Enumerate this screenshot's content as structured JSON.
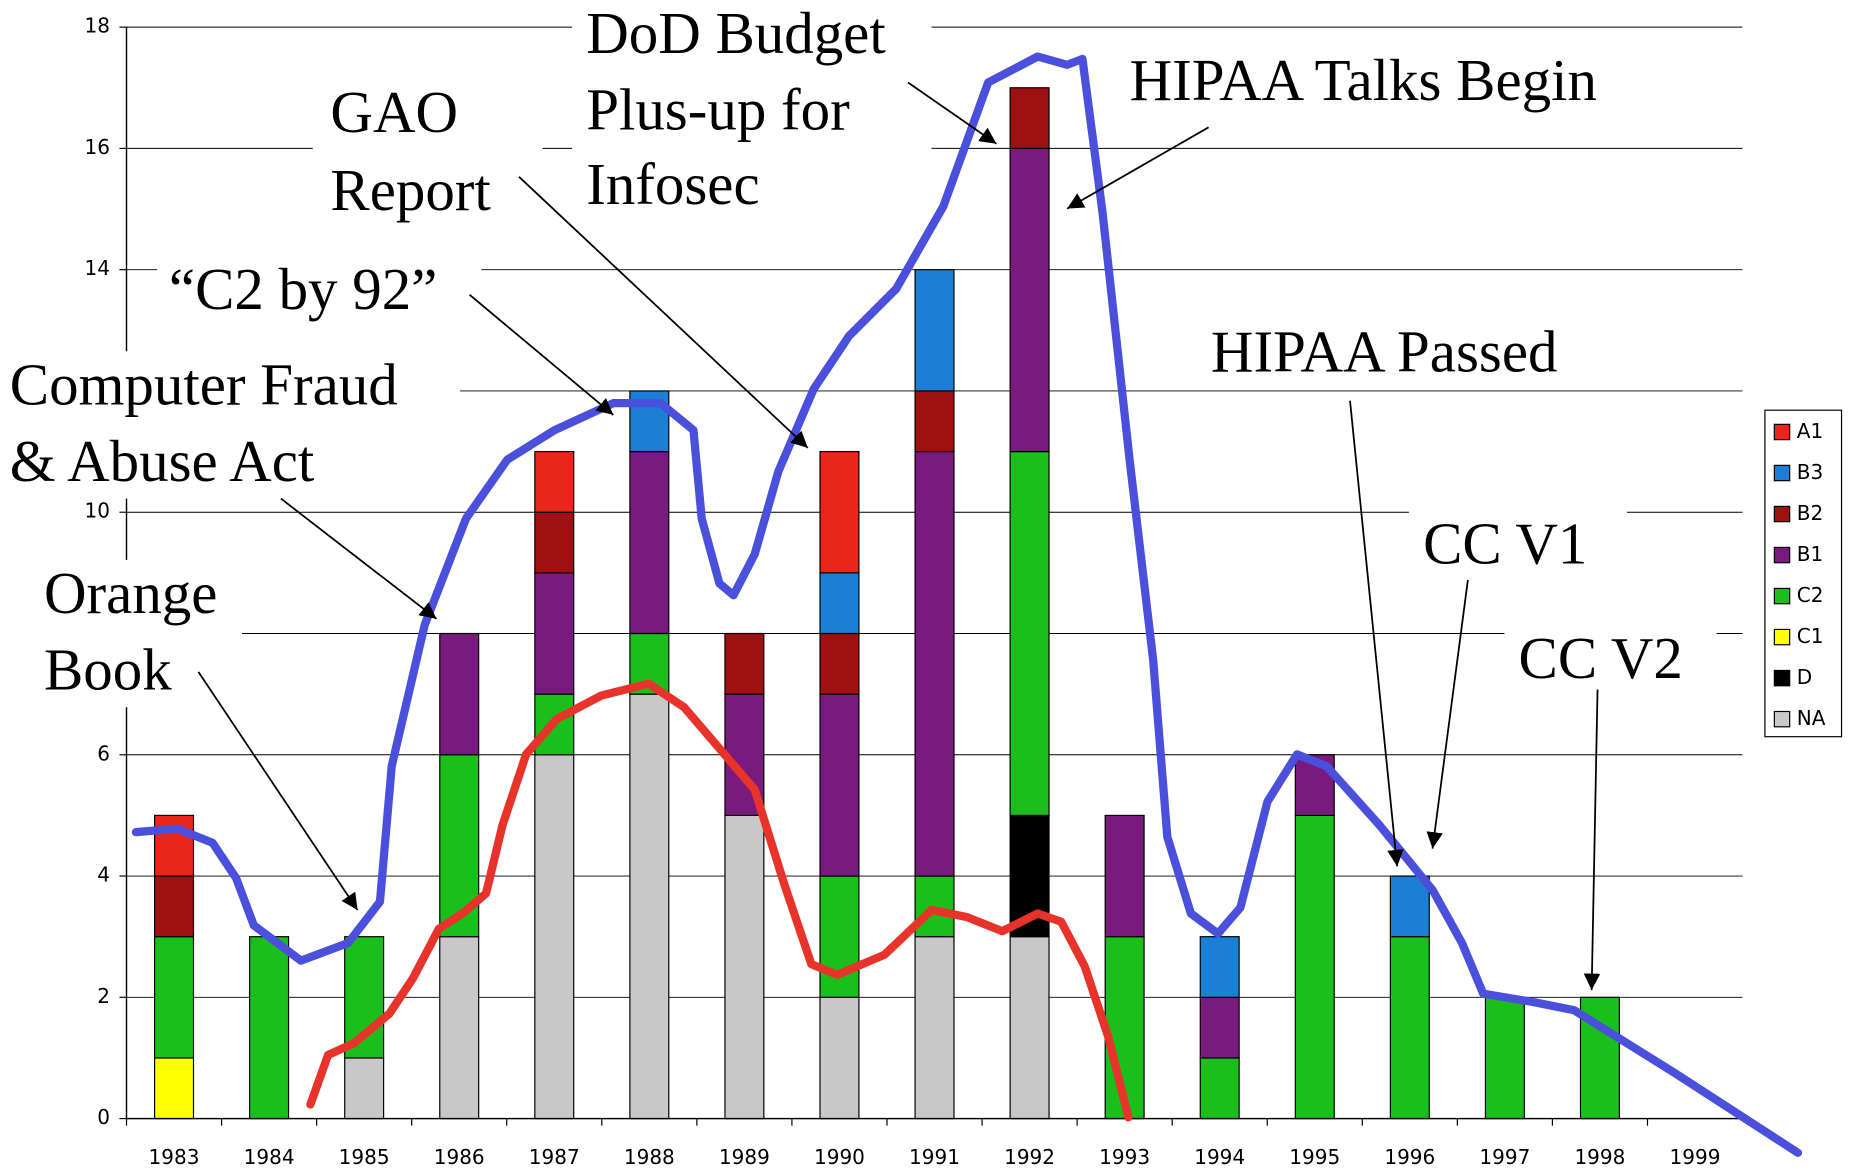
{
  "chart_data": {
    "type": "bar",
    "stacked": true,
    "categories": [
      "1983",
      "1984",
      "1985",
      "1986",
      "1987",
      "1988",
      "1989",
      "1990",
      "1991",
      "1992",
      "1993",
      "1994",
      "1995",
      "1996",
      "1997",
      "1998",
      "1999"
    ],
    "series": [
      {
        "name": "A1",
        "color": "#e8261a",
        "values": [
          1,
          0,
          0,
          0,
          1,
          0,
          0,
          2,
          0,
          0,
          0,
          0,
          0,
          0,
          0,
          0,
          0
        ]
      },
      {
        "name": "B3",
        "color": "#1b7fd6",
        "values": [
          0,
          0,
          0,
          0,
          0,
          1,
          0,
          1,
          2,
          0,
          0,
          1,
          0,
          1,
          0,
          0,
          0
        ]
      },
      {
        "name": "B2",
        "color": "#a01010",
        "values": [
          1,
          0,
          0,
          0,
          1,
          0,
          1,
          1,
          1,
          1,
          0,
          0,
          0,
          0,
          0,
          0,
          0
        ]
      },
      {
        "name": "B1",
        "color": "#7b1a7e",
        "values": [
          0,
          0,
          0,
          2,
          2,
          3,
          2,
          3,
          7,
          5,
          2,
          1,
          1,
          0,
          0,
          0,
          0
        ]
      },
      {
        "name": "C2",
        "color": "#1bbf1b",
        "values": [
          2,
          3,
          2,
          3,
          1,
          1,
          0,
          2,
          1,
          6,
          3,
          1,
          5,
          3,
          2,
          2,
          0
        ]
      },
      {
        "name": "C1",
        "color": "#ffff00",
        "values": [
          1,
          0,
          0,
          0,
          0,
          0,
          0,
          0,
          0,
          0,
          0,
          0,
          0,
          0,
          0,
          0,
          0
        ]
      },
      {
        "name": "D",
        "color": "#000000",
        "values": [
          0,
          0,
          0,
          0,
          0,
          0,
          0,
          0,
          0,
          2,
          0,
          0,
          0,
          0,
          0,
          0,
          0
        ]
      },
      {
        "name": "NA",
        "color": "#c8c8c8",
        "values": [
          0,
          0,
          1,
          3,
          6,
          7,
          5,
          2,
          3,
          3,
          0,
          0,
          0,
          0,
          0,
          0,
          0
        ]
      }
    ],
    "ylim": [
      0,
      18
    ],
    "yticks": [
      0,
      2,
      4,
      6,
      8,
      10,
      12,
      14,
      16,
      18
    ],
    "grid": true,
    "legend": "right",
    "annotations": [
      [
        "DoD Budget",
        "Plus-up for",
        "Infosec"
      ],
      [
        "GAO",
        "Report"
      ],
      [
        "HIPAA Talks Begin"
      ],
      [
        "“C2 by 92”"
      ],
      [
        "Computer Fraud",
        "& Abuse Act"
      ],
      [
        "Orange",
        "Book"
      ],
      [
        "HIPAA Passed"
      ],
      [
        "CC V1"
      ],
      [
        "CC V2"
      ]
    ]
  }
}
